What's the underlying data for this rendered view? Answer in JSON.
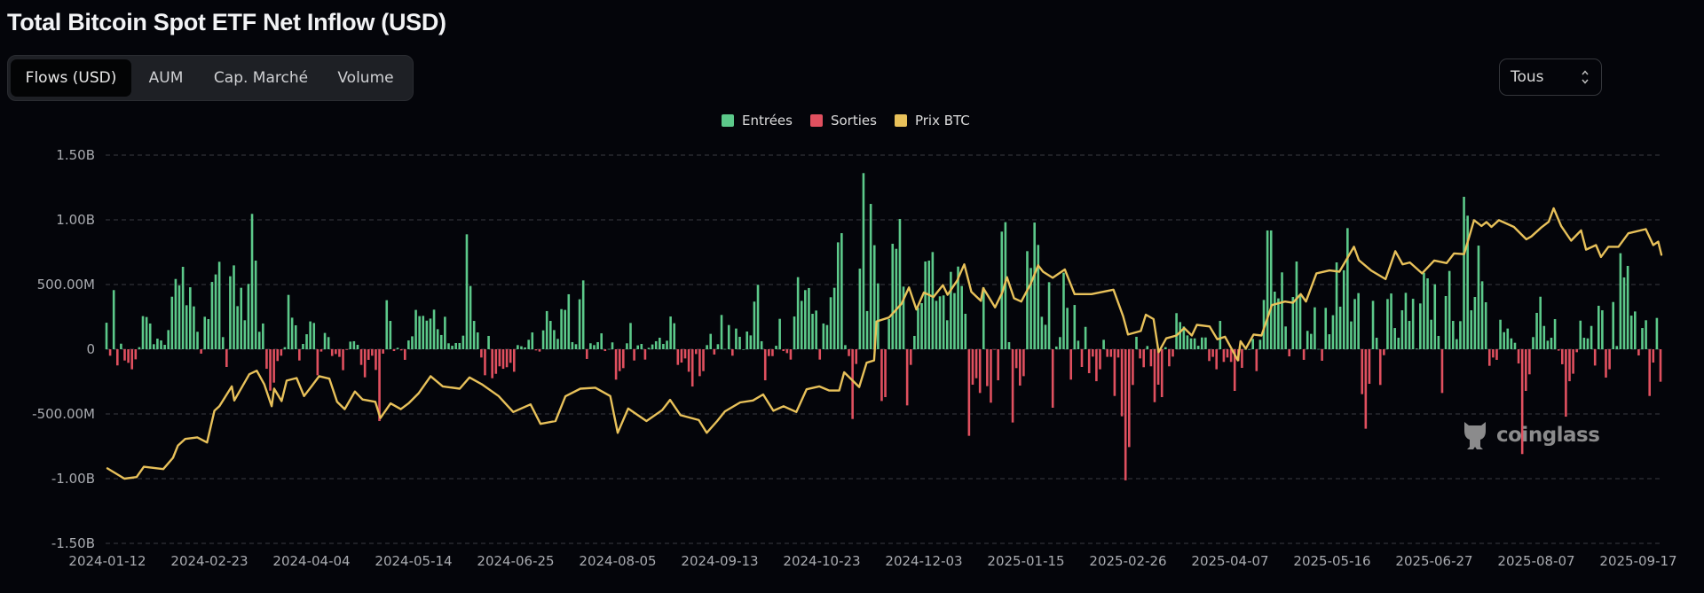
{
  "header": {
    "title": "Total Bitcoin Spot ETF Net Inflow (USD)"
  },
  "tabs": [
    {
      "label": "Flows (USD)",
      "active": true
    },
    {
      "label": "AUM",
      "active": false
    },
    {
      "label": "Cap. Marché",
      "active": false
    },
    {
      "label": "Volume",
      "active": false
    }
  ],
  "range_select": {
    "value": "Tous",
    "icon": "updown-chevron-icon"
  },
  "watermark": {
    "text": "coinglass",
    "icon": "coinglass-mascot-icon"
  },
  "colors": {
    "background": "#04050a",
    "inflow": "#5cc98a",
    "outflow": "#e0505f",
    "price": "#e8c15a",
    "grid": "#3a3c42"
  },
  "chart_data": {
    "type": "bar+line",
    "legend": [
      {
        "name": "Entrées",
        "color": "#5cc98a"
      },
      {
        "name": "Sorties",
        "color": "#e0505f"
      },
      {
        "name": "Prix BTC",
        "color": "#e8c15a"
      }
    ],
    "legend_position": "top-center",
    "grid": "horizontal dashed",
    "y_unit": "USD (millions)",
    "ylim": [
      -1500,
      1500
    ],
    "y_ticks": [
      {
        "value": 1500,
        "label": "1.50B"
      },
      {
        "value": 1000,
        "label": "1.00B"
      },
      {
        "value": 500,
        "label": "500.00M"
      },
      {
        "value": 0,
        "label": "0"
      },
      {
        "value": -500,
        "label": "-500.00M"
      },
      {
        "value": -1000,
        "label": "-1.00B"
      },
      {
        "value": -1500,
        "label": "-1.50B"
      }
    ],
    "x_ticks": [
      "2024-01-12",
      "2024-02-23",
      "2024-04-04",
      "2024-05-14",
      "2024-06-25",
      "2024-08-05",
      "2024-09-13",
      "2024-10-23",
      "2024-12-03",
      "2025-01-15",
      "2025-02-26",
      "2025-04-07",
      "2025-05-16",
      "2025-06-27",
      "2025-08-07",
      "2025-09-17"
    ],
    "daily_net_flow_musd": [
      205,
      -50,
      457,
      -125,
      43,
      -87,
      -105,
      -155,
      -78,
      16,
      256,
      249,
      199,
      39,
      82,
      68,
      34,
      148,
      406,
      543,
      493,
      637,
      340,
      479,
      331,
      135,
      -34,
      251,
      233,
      520,
      578,
      676,
      94,
      -137,
      564,
      648,
      333,
      475,
      224,
      505,
      1046,
      685,
      135,
      199,
      -151,
      -320,
      -258,
      -91,
      -50,
      16,
      420,
      244,
      185,
      -87,
      41,
      116,
      215,
      203,
      -201,
      -18,
      126,
      94,
      -52,
      -37,
      -59,
      -162,
      -5,
      59,
      62,
      34,
      -121,
      -217,
      -82,
      -50,
      -160,
      -555,
      -34,
      379,
      219,
      -14,
      11,
      -9,
      -82,
      68,
      100,
      304,
      256,
      258,
      221,
      237,
      306,
      155,
      110,
      251,
      46,
      27,
      48,
      48,
      105,
      888,
      489,
      219,
      130,
      -64,
      -201,
      103,
      -224,
      -190,
      -132,
      -151,
      -139,
      -105,
      -174,
      32,
      23,
      14,
      73,
      130,
      -9,
      -18,
      146,
      295,
      219,
      148,
      80,
      310,
      304,
      425,
      55,
      39,
      386,
      532,
      -75,
      46,
      32,
      55,
      123,
      -14,
      2,
      53,
      -235,
      -169,
      -146,
      46,
      203,
      -87,
      30,
      41,
      -80,
      11,
      37,
      62,
      89,
      41,
      66,
      253,
      201,
      -121,
      -103,
      -71,
      -174,
      -288,
      -37,
      -208,
      -169,
      32,
      119,
      -41,
      39,
      265,
      2,
      187,
      -50,
      160,
      96,
      0,
      137,
      107,
      368,
      498,
      62,
      -240,
      -53,
      -53,
      27,
      235,
      -14,
      -30,
      -80,
      253,
      557,
      374,
      457,
      473,
      274,
      299,
      -80,
      199,
      187,
      402,
      475,
      826,
      897,
      32,
      -53,
      -539,
      -114,
      623,
      1361,
      295,
      1123,
      804,
      509,
      -400,
      -370,
      233,
      815,
      776,
      1007,
      484,
      -434,
      -121,
      103,
      320,
      356,
      678,
      685,
      751,
      374,
      409,
      416,
      224,
      598,
      434,
      639,
      489,
      274,
      -669,
      -274,
      -224,
      -338,
      477,
      -285,
      -413,
      -2,
      -240,
      909,
      982,
      55,
      -566,
      -146,
      -281,
      -208,
      758,
      628,
      979,
      806,
      251,
      189,
      518,
      -452,
      21,
      94,
      591,
      320,
      -235,
      342,
      66,
      -137,
      173,
      -185,
      -57,
      -247,
      -155,
      73,
      -59,
      -59,
      -361,
      -64,
      -518,
      -1013,
      -756,
      -276,
      96,
      -71,
      -139,
      25,
      -132,
      -409,
      -274,
      -370,
      16,
      -132,
      -57,
      279,
      210,
      176,
      107,
      84,
      84,
      27,
      91,
      91,
      -91,
      -59,
      -155,
      219,
      -98,
      -64,
      -98,
      -322,
      -91,
      -144,
      0,
      0,
      80,
      -169,
      73,
      381,
      918,
      918,
      445,
      393,
      594,
      176,
      -55,
      404,
      678,
      422,
      -82,
      142,
      119,
      324,
      2,
      -89,
      320,
      116,
      263,
      671,
      329,
      610,
      936,
      215,
      388,
      434,
      -347,
      -614,
      -267,
      374,
      89,
      -276,
      -46,
      388,
      431,
      164,
      89,
      301,
      436,
      219,
      390,
      5,
      354,
      591,
      548,
      228,
      502,
      103,
      -338,
      411,
      605,
      219,
      78,
      217,
      1178,
      1032,
      301,
      404,
      801,
      525,
      363,
      -128,
      -64,
      -82,
      228,
      132,
      160,
      84,
      50,
      -110,
      -810,
      -322,
      -194,
      94,
      281,
      406,
      180,
      66,
      89,
      233,
      -11,
      -116,
      -521,
      -247,
      -189,
      -23,
      221,
      89,
      84,
      180,
      -126,
      336,
      301,
      -219,
      -155,
      365,
      25,
      742,
      555,
      644,
      260,
      292,
      -48,
      164,
      224,
      -361,
      -103,
      242,
      -251
    ],
    "btc_price_usd": {
      "dates": [
        "2024-01-12",
        "2024-01-19",
        "2024-01-24",
        "2024-01-27",
        "2024-02-04",
        "2024-02-08",
        "2024-02-10",
        "2024-02-13",
        "2024-02-18",
        "2024-02-22",
        "2024-02-25",
        "2024-02-27",
        "2024-03-03",
        "2024-03-04",
        "2024-03-10",
        "2024-03-13",
        "2024-03-16",
        "2024-03-19",
        "2024-03-20",
        "2024-03-23",
        "2024-03-25",
        "2024-03-29",
        "2024-04-01",
        "2024-04-04",
        "2024-04-07",
        "2024-04-11",
        "2024-04-14",
        "2024-04-17",
        "2024-04-21",
        "2024-04-24",
        "2024-04-29",
        "2024-05-01",
        "2024-05-05",
        "2024-05-09",
        "2024-05-12",
        "2024-05-16",
        "2024-05-21",
        "2024-05-26",
        "2024-06-02",
        "2024-06-06",
        "2024-06-11",
        "2024-06-18",
        "2024-06-24",
        "2024-07-01",
        "2024-07-05",
        "2024-07-11",
        "2024-07-15",
        "2024-07-21",
        "2024-07-27",
        "2024-08-02",
        "2024-08-05",
        "2024-08-09",
        "2024-08-16",
        "2024-08-22",
        "2024-08-25",
        "2024-08-29",
        "2024-09-05",
        "2024-09-08",
        "2024-09-12",
        "2024-09-15",
        "2024-09-21",
        "2024-09-26",
        "2024-09-30",
        "2024-10-04",
        "2024-10-08",
        "2024-10-13",
        "2024-10-17",
        "2024-10-22",
        "2024-10-26",
        "2024-10-30",
        "2024-11-01",
        "2024-11-07",
        "2024-11-10",
        "2024-11-13",
        "2024-11-14",
        "2024-11-19",
        "2024-11-24",
        "2024-11-27",
        "2024-11-30",
        "2024-12-03",
        "2024-12-07",
        "2024-12-11",
        "2024-12-13",
        "2024-12-17",
        "2024-12-20",
        "2024-12-23",
        "2024-12-27",
        "2024-12-28",
        "2025-01-02",
        "2025-01-05",
        "2025-01-07",
        "2025-01-10",
        "2025-01-13",
        "2025-01-17",
        "2025-01-20",
        "2025-01-22",
        "2025-01-26",
        "2025-01-31",
        "2025-02-04",
        "2025-02-11",
        "2025-02-20",
        "2025-02-24",
        "2025-02-26",
        "2025-03-03",
        "2025-03-05",
        "2025-03-08",
        "2025-03-10",
        "2025-03-13",
        "2025-03-17",
        "2025-03-20",
        "2025-03-23",
        "2025-03-25",
        "2025-03-30",
        "2025-04-02",
        "2025-04-05",
        "2025-04-10",
        "2025-04-11",
        "2025-04-13",
        "2025-04-16",
        "2025-04-19",
        "2025-04-23",
        "2025-04-28",
        "2025-05-01",
        "2025-05-04",
        "2025-05-06",
        "2025-05-10",
        "2025-05-15",
        "2025-05-19",
        "2025-05-25",
        "2025-05-27",
        "2025-06-01",
        "2025-06-07",
        "2025-06-11",
        "2025-06-14",
        "2025-06-17",
        "2025-06-22",
        "2025-06-27",
        "2025-07-02",
        "2025-07-05",
        "2025-07-09",
        "2025-07-13",
        "2025-07-16",
        "2025-07-18",
        "2025-07-20",
        "2025-07-23",
        "2025-07-29",
        "2025-08-03",
        "2025-08-05",
        "2025-08-09",
        "2025-08-12",
        "2025-08-14",
        "2025-08-17",
        "2025-08-21",
        "2025-08-25",
        "2025-08-27",
        "2025-08-31",
        "2025-09-02",
        "2025-09-05",
        "2025-09-09",
        "2025-09-13",
        "2025-09-20",
        "2025-09-23",
        "2025-09-25",
        "2025-09-27"
      ],
      "values": [
        43200,
        40000,
        40500,
        43700,
        43000,
        46500,
        50300,
        52400,
        52900,
        51300,
        61200,
        62600,
        68800,
        64400,
        72600,
        73700,
        69500,
        62600,
        68100,
        64200,
        70600,
        71400,
        65800,
        68800,
        72000,
        71200,
        64000,
        61700,
        67200,
        64700,
        64000,
        58900,
        63500,
        61700,
        63500,
        66600,
        72000,
        68800,
        68100,
        71600,
        69500,
        65800,
        60800,
        63200,
        57100,
        58000,
        65700,
        68100,
        68400,
        65800,
        54300,
        61900,
        58000,
        61400,
        64600,
        59800,
        58300,
        54300,
        58000,
        61000,
        63800,
        64400,
        66300,
        61200,
        62600,
        60800,
        67900,
        68800,
        67500,
        67500,
        73200,
        68600,
        76200,
        76900,
        89100,
        90300,
        94600,
        99700,
        92800,
        98100,
        96700,
        100400,
        97400,
        101800,
        106900,
        98300,
        95500,
        99500,
        93500,
        98100,
        102900,
        96300,
        95300,
        100900,
        106600,
        104600,
        102700,
        105300,
        97600,
        97600,
        99000,
        90700,
        85000,
        86100,
        91200,
        89800,
        79500,
        83800,
        84700,
        87000,
        84700,
        88000,
        87500,
        83500,
        84300,
        76900,
        82900,
        80600,
        85000,
        84700,
        94200,
        95300,
        94900,
        97600,
        95300,
        104100,
        105000,
        104600,
        112400,
        108200,
        105000,
        102300,
        111000,
        106900,
        107500,
        104100,
        108100,
        107300,
        110300,
        110100,
        120700,
        118900,
        120100,
        118600,
        120700,
        118600,
        114700,
        115600,
        118400,
        120200,
        124400,
        118900,
        114300,
        117500,
        111500,
        112900,
        109200,
        112400,
        112400,
        116600,
        117900,
        112900,
        114000,
        109900
      ]
    }
  }
}
